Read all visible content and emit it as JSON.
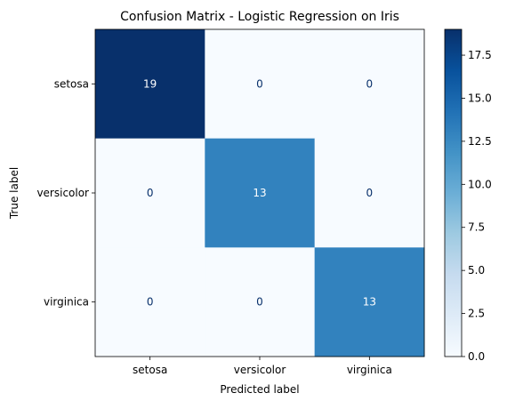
{
  "chart_data": {
    "type": "heatmap",
    "title": "Confusion Matrix - Logistic Regression on Iris",
    "xlabel": "Predicted label",
    "ylabel": "True label",
    "x_categories": [
      "setosa",
      "versicolor",
      "virginica"
    ],
    "y_categories": [
      "setosa",
      "versicolor",
      "virginica"
    ],
    "matrix": [
      [
        19,
        0,
        0
      ],
      [
        0,
        13,
        0
      ],
      [
        0,
        0,
        13
      ]
    ],
    "colormap": "Blues",
    "colorbar": {
      "range": [
        0,
        19
      ],
      "ticks": [
        0.0,
        2.5,
        5.0,
        7.5,
        10.0,
        12.5,
        15.0,
        17.5
      ],
      "tick_labels": [
        "0.0",
        "2.5",
        "5.0",
        "7.5",
        "10.0",
        "12.5",
        "15.0",
        "17.5"
      ]
    },
    "cell_text_colors": {
      "dark_cell": "#ffffff",
      "light_cell": "#08306b"
    }
  }
}
